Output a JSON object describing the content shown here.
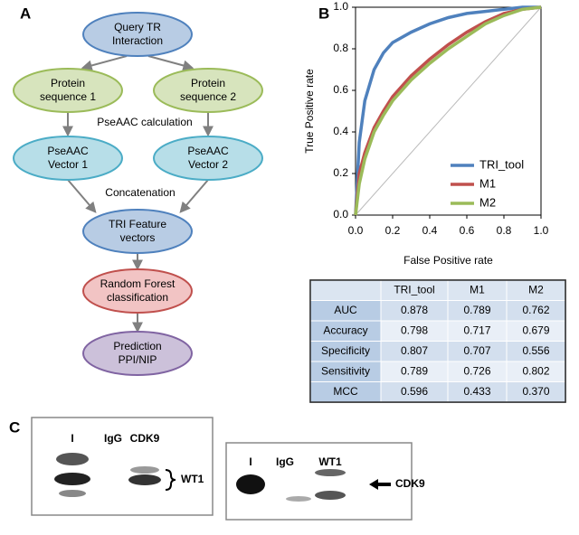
{
  "panel_labels": [
    "A",
    "B",
    "C"
  ],
  "flowchart": {
    "nodes": [
      {
        "lines": [
          "Query TR",
          "Interaction"
        ]
      },
      {
        "lines": [
          "Protein",
          "sequence 1"
        ]
      },
      {
        "lines": [
          "Protein",
          "sequence 2"
        ]
      },
      {
        "lines": [
          "PseAAC",
          "Vector 1"
        ]
      },
      {
        "lines": [
          "PseAAC",
          "Vector 2"
        ]
      },
      {
        "lines": [
          "TRI Feature",
          "vectors"
        ]
      },
      {
        "lines": [
          "Random Forest",
          "classification"
        ]
      },
      {
        "lines": [
          "Prediction",
          "PPI/NIP"
        ]
      }
    ],
    "edge_labels": [
      "PseAAC calculation",
      "Concatenation"
    ]
  },
  "chart_data": {
    "type": "line",
    "xlabel": "False Positive rate",
    "ylabel": "True Positive rate",
    "x": [
      0,
      0.02,
      0.05,
      0.1,
      0.15,
      0.2,
      0.3,
      0.4,
      0.5,
      0.6,
      0.7,
      0.8,
      0.9,
      1
    ],
    "series": [
      {
        "name": "TRI_tool",
        "color": "#4f81bd",
        "values": [
          0,
          0.35,
          0.55,
          0.7,
          0.78,
          0.83,
          0.88,
          0.92,
          0.95,
          0.97,
          0.98,
          0.99,
          1,
          1
        ]
      },
      {
        "name": "M1",
        "color": "#c0504d",
        "values": [
          0,
          0.2,
          0.3,
          0.42,
          0.5,
          0.57,
          0.67,
          0.75,
          0.82,
          0.88,
          0.93,
          0.97,
          0.99,
          1
        ]
      },
      {
        "name": "M2",
        "color": "#9bbb59",
        "values": [
          0,
          0.15,
          0.27,
          0.4,
          0.48,
          0.55,
          0.65,
          0.73,
          0.8,
          0.86,
          0.92,
          0.96,
          0.99,
          1
        ]
      }
    ],
    "xlim": [
      0,
      1
    ],
    "ylim": [
      0,
      1
    ],
    "xticks": [
      {
        "value": 0,
        "label": "0.0"
      },
      {
        "value": 0.2,
        "label": "0.2"
      },
      {
        "value": 0.4,
        "label": "0.4"
      },
      {
        "value": 0.6,
        "label": "0.6"
      },
      {
        "value": 0.8,
        "label": "0.8"
      },
      {
        "value": 1,
        "label": "1.0"
      }
    ],
    "yticks": [
      {
        "value": 0,
        "label": "0.0"
      },
      {
        "value": 0.2,
        "label": "0.2"
      },
      {
        "value": 0.4,
        "label": "0.4"
      },
      {
        "value": 0.6,
        "label": "0.6"
      },
      {
        "value": 0.8,
        "label": "0.8"
      },
      {
        "value": 1,
        "label": "1.0"
      }
    ],
    "legend": "lower right"
  },
  "table": {
    "header": [
      "TRI_tool",
      "M1",
      "M2"
    ],
    "rows": [
      [
        "AUC",
        "0.878",
        "0.789",
        "0.762"
      ],
      [
        "Accuracy",
        "0.798",
        "0.717",
        "0.679"
      ],
      [
        "Specificity",
        "0.807",
        "0.707",
        "0.556"
      ],
      [
        "Sensitivity",
        "0.789",
        "0.726",
        "0.802"
      ],
      [
        "MCC",
        "0.596",
        "0.433",
        "0.370"
      ]
    ]
  },
  "blots": [
    {
      "lanes": [
        "I",
        "IgG",
        "CDK9"
      ],
      "target": "WT1"
    },
    {
      "lanes": [
        "I",
        "IgG",
        "WT1"
      ],
      "target": "CDK9"
    }
  ]
}
